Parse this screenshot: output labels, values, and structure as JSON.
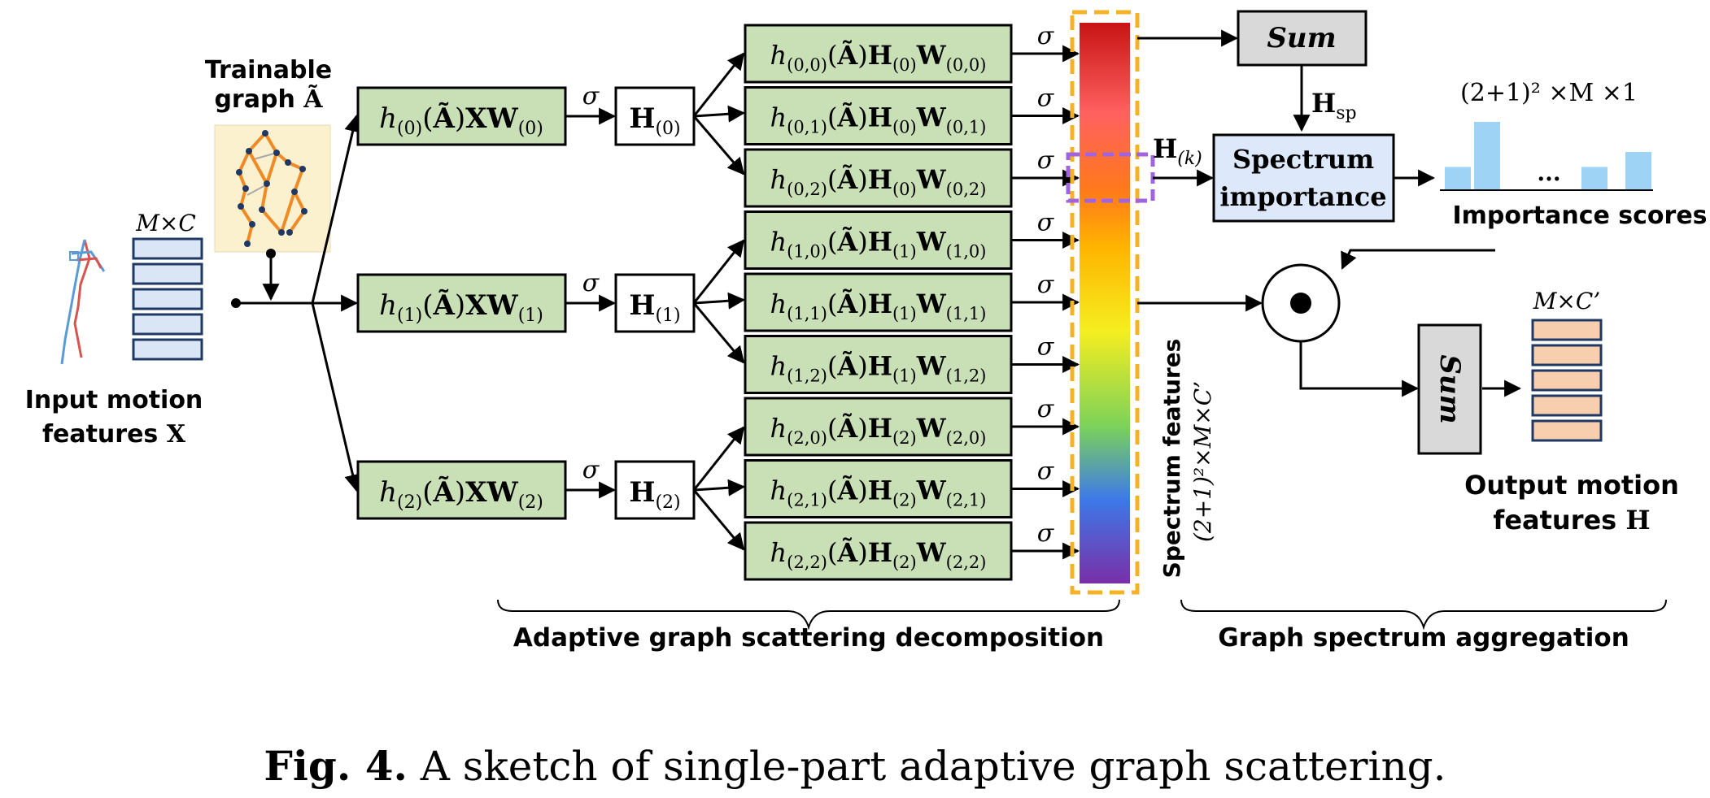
{
  "input": {
    "title_line1": "Input motion",
    "title_line2": "features ",
    "title_symbol": "X",
    "dims": "M×C"
  },
  "graph": {
    "title_line1": "Trainable",
    "title_line2": "graph ",
    "title_symbol": "Ã"
  },
  "sigma": "σ",
  "first_layer": [
    {
      "h_sub": "(0)",
      "w_sub": "(0)"
    },
    {
      "h_sub": "(1)",
      "w_sub": "(1)"
    },
    {
      "h_sub": "(2)",
      "w_sub": "(2)"
    }
  ],
  "h_nodes": [
    {
      "sub": "(0)"
    },
    {
      "sub": "(1)"
    },
    {
      "sub": "(2)"
    }
  ],
  "second_layer": [
    {
      "h_sub": "(0,0)",
      "H_sub": "(0)",
      "w_sub": "(0,0)"
    },
    {
      "h_sub": "(0,1)",
      "H_sub": "(0)",
      "w_sub": "(0,1)"
    },
    {
      "h_sub": "(0,2)",
      "H_sub": "(0)",
      "w_sub": "(0,2)"
    },
    {
      "h_sub": "(1,0)",
      "H_sub": "(1)",
      "w_sub": "(1,0)"
    },
    {
      "h_sub": "(1,1)",
      "H_sub": "(1)",
      "w_sub": "(1,1)"
    },
    {
      "h_sub": "(1,2)",
      "H_sub": "(1)",
      "w_sub": "(1,2)"
    },
    {
      "h_sub": "(2,0)",
      "H_sub": "(2)",
      "w_sub": "(2,0)"
    },
    {
      "h_sub": "(2,1)",
      "H_sub": "(2)",
      "w_sub": "(2,1)"
    },
    {
      "h_sub": "(2,2)",
      "H_sub": "(2)",
      "w_sub": "(2,2)"
    }
  ],
  "spectrum": {
    "label_line1": "Spectrum features",
    "label_line2": "(2+1)²×M×C’",
    "hk": "(k)"
  },
  "aggregation": {
    "sum_top": "Sum",
    "hsp_sub": "sp",
    "importance_line1": "Spectrum",
    "importance_line2": "importance",
    "scores_dims": "(2+1)² ×M ×1",
    "scores_label": "Importance scores",
    "ellipsis": "...",
    "dot_symbol": "•",
    "sum_right": "Sum",
    "output_dims": "M×C’",
    "output_line1": "Output motion",
    "output_line2": "features ",
    "output_symbol": "H"
  },
  "importance_bars": [
    0.34,
    1.0,
    0.34,
    0.56
  ],
  "colors": {
    "green_fill": "#c9e0b6",
    "blue_fill": "#dae6f5",
    "orange_fill": "#f7cfae",
    "bar_fill": "#9fd3f5",
    "importance_fill": "#dde8fa",
    "sum_fill": "#d9d9d9",
    "dashed_yellow": "#f5b225",
    "dashed_purple": "#a064e0"
  },
  "braces": {
    "left_label": "Adaptive graph scattering decomposition",
    "right_label": "Graph spectrum aggregation"
  },
  "caption": {
    "bold": "Fig. 4.",
    "text": " A sketch of single-part adaptive graph scattering."
  }
}
